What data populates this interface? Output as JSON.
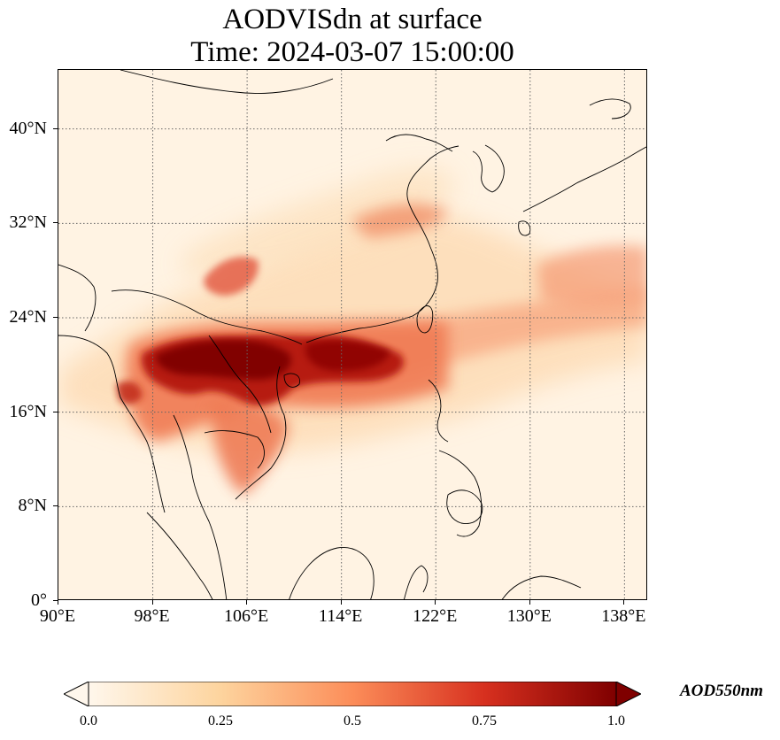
{
  "title": {
    "line1": "AODVISdn at surface",
    "line2": "Time: 2024-03-07 15:00:00"
  },
  "map": {
    "projection": "PlateCarree",
    "lon_range": [
      90,
      140
    ],
    "lat_range": [
      0,
      45
    ],
    "gridlines": "dotted",
    "lon_ticks": [
      {
        "value": 90,
        "label": "90°E"
      },
      {
        "value": 98,
        "label": "98°E"
      },
      {
        "value": 106,
        "label": "106°E"
      },
      {
        "value": 114,
        "label": "114°E"
      },
      {
        "value": 122,
        "label": "122°E"
      },
      {
        "value": 130,
        "label": "130°E"
      },
      {
        "value": 138,
        "label": "138°E"
      }
    ],
    "lat_ticks": [
      {
        "value": 0,
        "label": "0°"
      },
      {
        "value": 8,
        "label": "8°N"
      },
      {
        "value": 16,
        "label": "16°N"
      },
      {
        "value": 24,
        "label": "24°N"
      },
      {
        "value": 32,
        "label": "32°N"
      },
      {
        "value": 40,
        "label": "40°N"
      }
    ],
    "colormap": "OrRd",
    "value_range": [
      0.0,
      1.0
    ],
    "background_color": "#fff3e3",
    "coastline_color": "#000000"
  },
  "colorbar": {
    "label": "AOD550nm",
    "extend": "both",
    "ticks": [
      {
        "value": 0.0,
        "label": "0.0"
      },
      {
        "value": 0.25,
        "label": "0.25"
      },
      {
        "value": 0.5,
        "label": "0.5"
      },
      {
        "value": 0.75,
        "label": "0.75"
      },
      {
        "value": 1.0,
        "label": "1.0"
      }
    ],
    "colors": [
      "#fff7ec",
      "#fdd49e",
      "#fc8d59",
      "#d7301f",
      "#7f0000"
    ]
  }
}
